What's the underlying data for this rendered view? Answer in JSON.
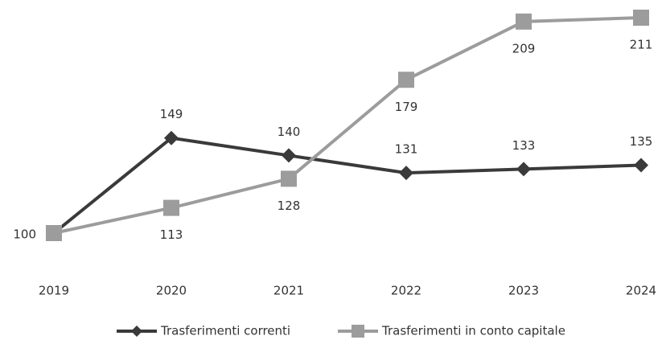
{
  "chart_data": {
    "type": "line",
    "categories": [
      "2019",
      "2020",
      "2021",
      "2022",
      "2023",
      "2024"
    ],
    "series": [
      {
        "name": "Trasferimenti correnti",
        "color": "#3a3a3a",
        "values": [
          100,
          149,
          140,
          131,
          133,
          135
        ]
      },
      {
        "name": "Trasferimenti in conto capitale",
        "color": "#9c9c9c",
        "values": [
          100,
          113,
          128,
          179,
          209,
          211
        ]
      }
    ]
  }
}
